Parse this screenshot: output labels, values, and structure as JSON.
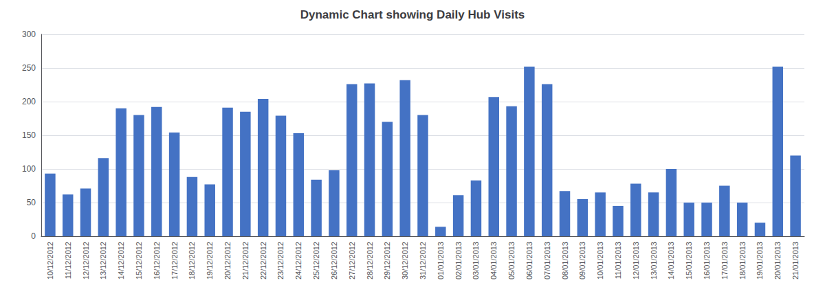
{
  "chart_data": {
    "type": "bar",
    "title": "Dynamic Chart showing Daily Hub Visits",
    "categories": [
      "10/12/2012",
      "11/12/2012",
      "12/12/2012",
      "13/12/2012",
      "14/12/2012",
      "15/12/2012",
      "16/12/2012",
      "17/12/2012",
      "18/12/2012",
      "19/12/2012",
      "20/12/2012",
      "21/12/2012",
      "22/12/2012",
      "23/12/2012",
      "24/12/2012",
      "25/12/2012",
      "26/12/2012",
      "27/12/2012",
      "28/12/2012",
      "29/12/2012",
      "30/12/2012",
      "31/12/2012",
      "01/01/2013",
      "02/01/2013",
      "03/01/2013",
      "04/01/2013",
      "05/01/2013",
      "06/01/2013",
      "07/01/2013",
      "08/01/2013",
      "09/01/2013",
      "10/01/2013",
      "11/01/2013",
      "12/01/2013",
      "13/01/2013",
      "14/01/2013",
      "15/01/2013",
      "16/01/2013",
      "17/01/2013",
      "18/01/2013",
      "19/01/2013",
      "20/01/2013",
      "21/01/2013"
    ],
    "values": [
      93,
      62,
      71,
      116,
      190,
      180,
      192,
      154,
      88,
      77,
      191,
      185,
      204,
      179,
      153,
      84,
      98,
      226,
      227,
      170,
      232,
      180,
      14,
      61,
      83,
      207,
      193,
      252,
      226,
      67,
      55,
      65,
      45,
      78,
      65,
      100,
      50,
      50,
      75,
      50,
      20,
      252,
      120
    ],
    "color": "#4472C4",
    "ylim": [
      0,
      300
    ],
    "yticks": [
      0,
      50,
      100,
      150,
      200,
      250,
      300
    ],
    "grid": true
  }
}
